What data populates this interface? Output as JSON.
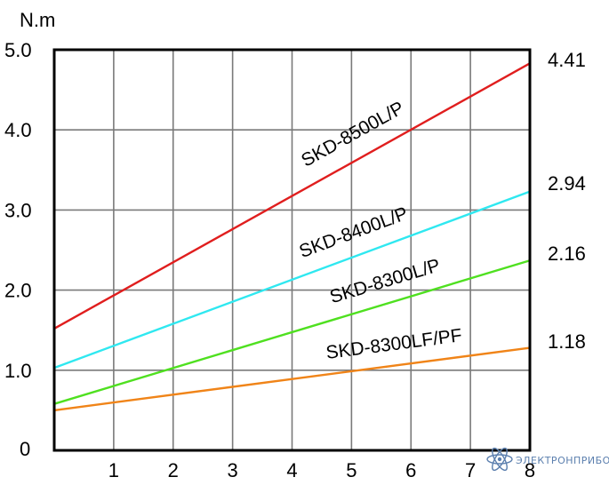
{
  "chart_data": {
    "type": "line",
    "ylabel": "N.m",
    "xlabel": "",
    "xlim": [
      0,
      8
    ],
    "ylim": [
      0,
      5
    ],
    "grid": true,
    "x_ticks": [
      "1",
      "2",
      "3",
      "4",
      "5",
      "6",
      "7",
      "8"
    ],
    "y_ticks": [
      "0",
      "1.0",
      "2.0",
      "3.0",
      "4.0",
      "5.0"
    ],
    "series": [
      {
        "name": "SKD-8500L/P",
        "color": "#e01e1e",
        "x": [
          0,
          8
        ],
        "y": [
          1.52,
          4.83
        ],
        "end_label": "4.41"
      },
      {
        "name": "SKD-8400L/P",
        "color": "#2fe8f0",
        "x": [
          0,
          8
        ],
        "y": [
          1.03,
          3.23
        ],
        "end_label": "2.94"
      },
      {
        "name": "SKD-8300L/P",
        "color": "#4fe020",
        "x": [
          0,
          8
        ],
        "y": [
          0.58,
          2.37
        ],
        "end_label": "2.16"
      },
      {
        "name": "SKD-8300LF/PF",
        "color": "#f08418",
        "x": [
          0,
          8
        ],
        "y": [
          0.5,
          1.28
        ],
        "end_label": "1.18"
      }
    ]
  },
  "watermark": {
    "text": "ЭЛЕКТРОНПРИБОР",
    "icon": "atom-icon"
  }
}
